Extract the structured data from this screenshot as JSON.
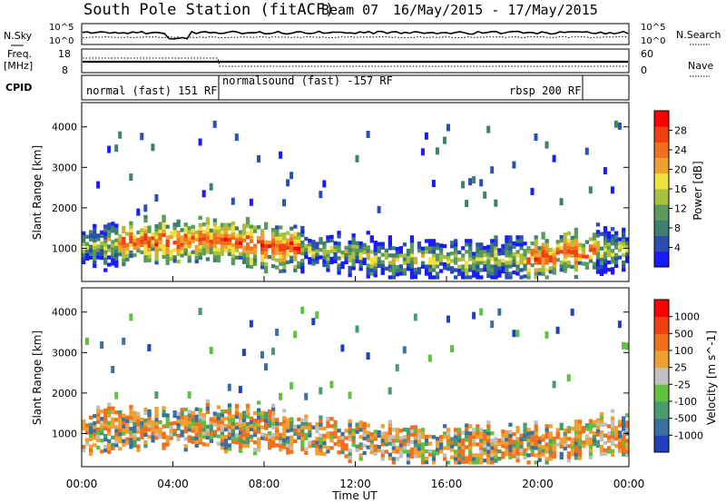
{
  "header": {
    "station": "South Pole Station (fitACF)",
    "beam": "Beam 07",
    "date_range": "16/May/2015 - 17/May/2015"
  },
  "left_labels": {
    "nsky": "N.Sky",
    "freq": "Freq.",
    "freq_unit": "[MHz]",
    "cpid": "CPID"
  },
  "right_labels": {
    "nsearch": "N.Search",
    "nave": "Nave"
  },
  "noise_panel": {
    "left_ticks": [
      "10^5",
      "10^0"
    ],
    "right_ticks": [
      "10^5",
      "10^0"
    ]
  },
  "freq_panel": {
    "left_ticks": [
      "18",
      "8"
    ],
    "right_ticks": [
      "60",
      "0"
    ]
  },
  "cpid_segments": [
    {
      "label": "normal (fast) 151 RF"
    },
    {
      "label": "normalsound (fast) -157 RF"
    },
    {
      "label": "rbsp 200 RF"
    }
  ],
  "colors": {
    "power_scale": [
      "#1a1aff",
      "#2a4fb0",
      "#3e7f70",
      "#5a9a5a",
      "#a8c040",
      "#f0e040",
      "#f0a030",
      "#f07020",
      "#f04010",
      "#ff0000"
    ],
    "velocity_scale": [
      "#2040c0",
      "#3a70a0",
      "#4a9a70",
      "#60c040",
      "#c0c0c0",
      "#f0a030",
      "#f07020",
      "#f04010",
      "#ff0000"
    ]
  },
  "chart_data": [
    {
      "type": "heatmap",
      "title": "",
      "ylabel": "Slant Range [km]",
      "ylim": [
        180,
        4600
      ],
      "y_ticks": [
        "4000",
        "3000",
        "2000",
        "1000"
      ],
      "colorbar_label": "Power [dB]",
      "colorbar_ticks": [
        "28",
        "24",
        "20",
        "16",
        "12",
        "8",
        "4"
      ],
      "colorbar_range": [
        0,
        32
      ]
    },
    {
      "type": "heatmap",
      "title": "",
      "ylabel": "Slant Range [km]",
      "ylim": [
        180,
        4600
      ],
      "y_ticks": [
        "4000",
        "3000",
        "2000",
        "1000"
      ],
      "colorbar_label": "Velocity [m s^-1]",
      "colorbar_ticks": [
        "1000",
        "500",
        "100",
        "25",
        "-25",
        "-100",
        "-500",
        "-1000"
      ]
    }
  ],
  "x_axis": {
    "ticks": [
      "00:00",
      "04:00",
      "08:00",
      "12:00",
      "16:00",
      "20:00",
      "00:00"
    ],
    "label": "Time UT"
  }
}
